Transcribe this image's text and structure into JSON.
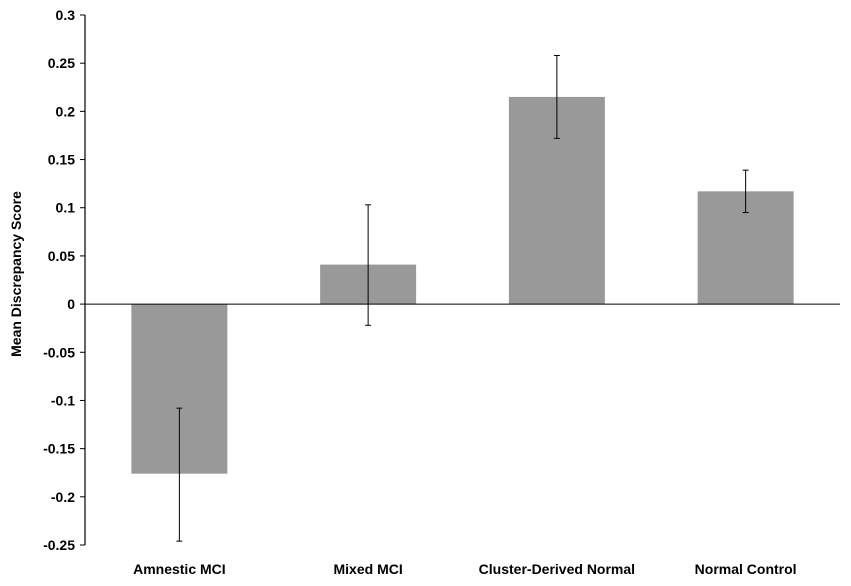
{
  "chart_data": {
    "type": "bar",
    "title": "",
    "xlabel": "",
    "ylabel": "Mean Discrepancy Score",
    "ylim": [
      -0.25,
      0.3
    ],
    "yticks": [
      0.3,
      0.25,
      0.2,
      0.15,
      0.1,
      0.05,
      0,
      -0.05,
      -0.1,
      -0.15,
      -0.2,
      -0.25
    ],
    "ytick_labels": [
      "0.3",
      "0.25",
      "0.2",
      "0.15",
      "0.1",
      "0.05",
      "0",
      "-0.05",
      "-0.1",
      "-0.15",
      "-0.2",
      "-0.25"
    ],
    "categories": [
      "Amnestic MCI",
      "Mixed MCI",
      "Cluster-Derived Normal",
      "Normal Control"
    ],
    "values": [
      -0.176,
      0.041,
      0.215,
      0.117
    ],
    "error_low": [
      -0.246,
      -0.022,
      0.172,
      0.095
    ],
    "error_high": [
      -0.108,
      0.103,
      0.258,
      0.139
    ],
    "grid": false,
    "legend": "none",
    "colors": {
      "bar": "#999999",
      "axis": "#000000",
      "error_bar": "#000000"
    }
  }
}
